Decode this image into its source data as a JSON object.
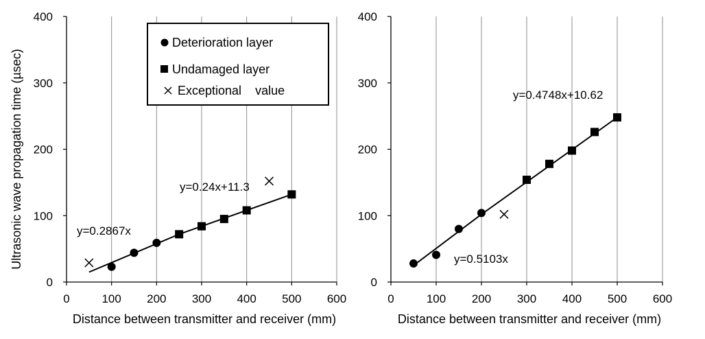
{
  "y_axis_label": "Ultrasonic wave propagation time (µsec)",
  "legend": {
    "deterioration": "Deterioration layer",
    "undamaged": "Undamaged layer",
    "exceptional": "Exceptional    value"
  },
  "chart_data": [
    {
      "type": "scatter",
      "xlabel": "Distance between transmitter and receiver (mm)",
      "ylabel": "Ultrasonic wave propagation time (µsec)",
      "xlim": [
        0,
        600
      ],
      "ylim": [
        0,
        400
      ],
      "xticks": [
        0,
        100,
        200,
        300,
        400,
        500,
        600
      ],
      "yticks": [
        0,
        100,
        200,
        300,
        400
      ],
      "grid": "vertical",
      "legend_position": "top-right",
      "series": [
        {
          "name": "Deterioration layer",
          "marker": "circle",
          "x": [
            100,
            150,
            200
          ],
          "y": [
            23,
            44,
            59
          ]
        },
        {
          "name": "Undamaged layer",
          "marker": "square",
          "x": [
            250,
            300,
            350,
            400,
            500
          ],
          "y": [
            72,
            84,
            95,
            108,
            132
          ]
        },
        {
          "name": "Exceptional value",
          "marker": "x",
          "x": [
            50,
            450
          ],
          "y": [
            29,
            152
          ]
        }
      ],
      "lines": [
        {
          "label": "y=0.2867x",
          "x": [
            50,
            250
          ],
          "y": [
            15,
            72
          ]
        },
        {
          "label": "y=0.24x+11.3",
          "x": [
            250,
            500
          ],
          "y": [
            72,
            132
          ]
        }
      ]
    },
    {
      "type": "scatter",
      "xlabel": "Distance between transmitter and receiver (mm)",
      "ylabel": "",
      "xlim": [
        0,
        600
      ],
      "ylim": [
        0,
        400
      ],
      "xticks": [
        0,
        100,
        200,
        300,
        400,
        500,
        600
      ],
      "yticks": [
        0,
        100,
        200,
        300,
        400
      ],
      "grid": "vertical",
      "series": [
        {
          "name": "Deterioration layer",
          "marker": "circle",
          "x": [
            50,
            100,
            150,
            200
          ],
          "y": [
            28,
            41,
            80,
            104
          ]
        },
        {
          "name": "Undamaged layer",
          "marker": "square",
          "x": [
            300,
            350,
            400,
            450,
            500
          ],
          "y": [
            154,
            178,
            198,
            226,
            248
          ]
        },
        {
          "name": "Exceptional value",
          "marker": "x",
          "x": [
            250
          ],
          "y": [
            102
          ]
        }
      ],
      "lines": [
        {
          "label": "y=0.5103x",
          "x": [
            50,
            200
          ],
          "y": [
            25,
            102
          ]
        },
        {
          "label": "y=0.4748x+10.62",
          "x": [
            200,
            500
          ],
          "y": [
            102,
            248
          ]
        }
      ]
    }
  ]
}
